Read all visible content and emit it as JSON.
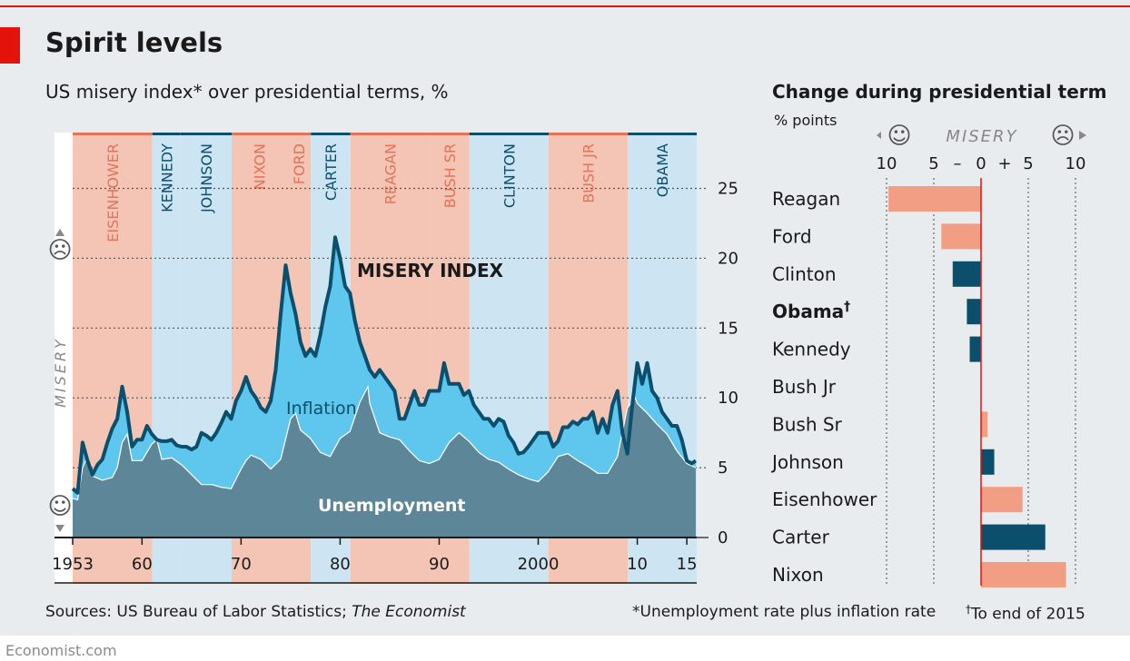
{
  "header": {
    "title": "Spirit levels",
    "left_subtitle": "US misery index* over presidential terms, %",
    "right_subtitle": "Change during presidential term",
    "right_unit": "% points"
  },
  "footer": {
    "sources_prefix": "Sources: US Bureau of Labor Statistics; ",
    "sources_italic": "The Economist",
    "note": "*Unemployment rate plus inflation rate",
    "dagger_note": "To end of 2015",
    "dagger": "†",
    "brand": "Economist.com"
  },
  "colors": {
    "background": "#e8ecee",
    "republican": "#f4c4b4",
    "democrat": "#cde5f3",
    "republican_text": "#e3735a",
    "democrat_text": "#0b4f6c",
    "unemployment_fill": "#5d8799",
    "inflation_fill": "#5fc6ed",
    "misery_line": "#0b4f6c",
    "bar_republican": "#f29e85",
    "bar_democrat": "#0b4f6c",
    "zero_line": "#e3120b"
  },
  "chart_data": [
    {
      "type": "area",
      "title": "US misery index* over presidential terms, %",
      "ylim": [
        0,
        29
      ],
      "xlim": [
        1953,
        2016
      ],
      "yticks": [
        0,
        5,
        10,
        15,
        20,
        25
      ],
      "xticks": [
        1953,
        1960,
        1970,
        1980,
        1990,
        2000,
        2010,
        2015
      ],
      "xtick_labels": [
        "1953",
        "60",
        "70",
        "80",
        "90",
        "2000",
        "10",
        "15"
      ],
      "y_axis_side": "right",
      "side_label": "MISERY",
      "terms": [
        {
          "name": "EISENHOWER",
          "start": 1953.0,
          "end": 1961.05,
          "party": "R"
        },
        {
          "name": "KENNEDY",
          "start": 1961.05,
          "end": 1963.9,
          "party": "D"
        },
        {
          "name": "JOHNSON",
          "start": 1963.9,
          "end": 1969.05,
          "party": "D"
        },
        {
          "name": "NIXON",
          "start": 1969.05,
          "end": 1974.6,
          "party": "R"
        },
        {
          "name": "FORD",
          "start": 1974.6,
          "end": 1977.05,
          "party": "R"
        },
        {
          "name": "CARTER",
          "start": 1977.05,
          "end": 1981.05,
          "party": "D"
        },
        {
          "name": "REAGAN",
          "start": 1981.05,
          "end": 1989.05,
          "party": "R"
        },
        {
          "name": "BUSH SR",
          "start": 1989.05,
          "end": 1993.05,
          "party": "R"
        },
        {
          "name": "CLINTON",
          "start": 1993.05,
          "end": 2001.05,
          "party": "D"
        },
        {
          "name": "BUSH JR",
          "start": 2001.05,
          "end": 2009.05,
          "party": "R"
        },
        {
          "name": "OBAMA",
          "start": 2009.05,
          "end": 2016.0,
          "party": "D"
        }
      ],
      "series_labels": {
        "misery": "MISERY INDEX",
        "inflation": "Inflation",
        "unemployment": "Unemployment"
      },
      "series": [
        {
          "name": "Unemployment",
          "x": [
            1953,
            1953.5,
            1954,
            1954.5,
            1955,
            1956,
            1957,
            1957.5,
            1958,
            1958.5,
            1959,
            1960,
            1961,
            1961.5,
            1962,
            1963,
            1964,
            1965,
            1966,
            1967,
            1968,
            1969,
            1970,
            1970.5,
            1971,
            1972,
            1973,
            1974,
            1975,
            1975.5,
            1976,
            1977,
            1978,
            1979,
            1980,
            1981,
            1982,
            1982.8,
            1983,
            1984,
            1985,
            1986,
            1987,
            1988,
            1989,
            1990,
            1991,
            1992,
            1993,
            1994,
            1995,
            1996,
            1997,
            1998,
            1999,
            2000,
            2001,
            2002,
            2003,
            2004,
            2005,
            2006,
            2007,
            2008,
            2009,
            2009.8,
            2010,
            2011,
            2012,
            2013,
            2014,
            2015,
            2015.9
          ],
          "values": [
            2.8,
            2.7,
            5.0,
            5.8,
            4.4,
            4.1,
            4.3,
            5.0,
            6.8,
            7.4,
            5.5,
            5.5,
            6.7,
            7.0,
            5.6,
            5.7,
            5.2,
            4.5,
            3.8,
            3.8,
            3.6,
            3.5,
            4.9,
            5.5,
            5.9,
            5.6,
            4.9,
            5.6,
            8.5,
            8.9,
            7.7,
            7.1,
            6.1,
            5.8,
            7.1,
            7.6,
            9.7,
            10.8,
            9.6,
            7.5,
            7.2,
            7.0,
            6.2,
            5.5,
            5.3,
            5.6,
            6.8,
            7.5,
            6.9,
            6.1,
            5.6,
            5.4,
            4.9,
            4.5,
            4.2,
            4.0,
            4.7,
            5.8,
            6.0,
            5.5,
            5.1,
            4.6,
            4.6,
            5.8,
            9.3,
            10.0,
            9.6,
            8.9,
            8.1,
            7.4,
            6.2,
            5.3,
            5.0
          ]
        },
        {
          "name": "Misery index",
          "x": [
            1953,
            1953.5,
            1954,
            1954.5,
            1955,
            1955.5,
            1956,
            1956.5,
            1957,
            1957.5,
            1958,
            1958.5,
            1959,
            1959.5,
            1960,
            1960.5,
            1961,
            1961.5,
            1962,
            1962.5,
            1963,
            1963.5,
            1964,
            1964.5,
            1965,
            1965.5,
            1966,
            1966.5,
            1967,
            1967.5,
            1968,
            1968.5,
            1969,
            1969.5,
            1970,
            1970.5,
            1971,
            1971.5,
            1972,
            1972.5,
            1973,
            1973.5,
            1974,
            1974.5,
            1975,
            1975.5,
            1976,
            1976.5,
            1977,
            1977.5,
            1978,
            1978.5,
            1979,
            1979.5,
            1980,
            1980.5,
            1981,
            1981.5,
            1982,
            1982.5,
            1983,
            1983.5,
            1984,
            1984.5,
            1985,
            1985.5,
            1986,
            1986.5,
            1987,
            1987.5,
            1988,
            1988.5,
            1989,
            1989.5,
            1990,
            1990.5,
            1991,
            1991.5,
            1992,
            1992.5,
            1993,
            1993.5,
            1994,
            1994.5,
            1995,
            1995.5,
            1996,
            1996.5,
            1997,
            1997.5,
            1998,
            1998.5,
            1999,
            1999.5,
            2000,
            2000.5,
            2001,
            2001.5,
            2002,
            2002.5,
            2003,
            2003.5,
            2004,
            2004.5,
            2005,
            2005.5,
            2006,
            2006.5,
            2007,
            2007.5,
            2008,
            2008.5,
            2009,
            2009.5,
            2010,
            2010.5,
            2011,
            2011.5,
            2012,
            2012.5,
            2013,
            2013.5,
            2014,
            2014.5,
            2015,
            2015.5,
            2015.9
          ],
          "values": [
            3.5,
            3.2,
            6.8,
            5.5,
            4.5,
            5.2,
            5.6,
            6.8,
            7.8,
            8.5,
            10.8,
            9.0,
            6.5,
            7.0,
            7.0,
            8.0,
            7.4,
            7.0,
            6.9,
            6.9,
            7.0,
            6.6,
            6.5,
            6.5,
            6.3,
            6.5,
            7.5,
            7.3,
            7.0,
            7.5,
            8.2,
            9.0,
            8.5,
            9.8,
            10.5,
            11.5,
            10.5,
            10.0,
            9.3,
            9.0,
            9.8,
            12.0,
            16.0,
            19.5,
            17.5,
            16.0,
            14.0,
            13.0,
            13.5,
            13.0,
            14.5,
            16.5,
            18.0,
            21.5,
            20.0,
            18.0,
            17.5,
            15.5,
            14.0,
            13.0,
            12.0,
            11.5,
            12.0,
            11.5,
            11.0,
            10.5,
            8.5,
            8.5,
            9.5,
            10.5,
            9.5,
            9.5,
            10.5,
            10.5,
            10.5,
            12.5,
            11.0,
            11.0,
            11.0,
            10.2,
            10.5,
            9.5,
            9.0,
            8.5,
            8.5,
            8.0,
            8.5,
            8.3,
            7.3,
            6.8,
            6.0,
            6.1,
            6.5,
            7.0,
            7.5,
            7.5,
            7.5,
            6.5,
            6.9,
            7.9,
            7.9,
            8.3,
            8.1,
            8.5,
            8.5,
            9.0,
            7.5,
            8.5,
            7.5,
            9.5,
            10.5,
            7.5,
            6.0,
            9.5,
            12.5,
            11.0,
            12.5,
            10.5,
            10.0,
            9.0,
            8.5,
            8.0,
            8.0,
            7.0,
            5.5,
            5.3,
            5.5
          ]
        }
      ],
      "marker_happy": "☺",
      "marker_sad": "☹"
    },
    {
      "type": "bar",
      "title": "Change during presidential term",
      "unit": "% points",
      "axis_label": "MISERY",
      "xlim": [
        -10,
        10
      ],
      "xticks": [
        -10,
        -5,
        0,
        5,
        10
      ],
      "xtick_labels": [
        "10",
        "5",
        "0",
        "5",
        "10"
      ],
      "sign_minus": "–",
      "sign_plus": "+",
      "categories": [
        "Reagan",
        "Ford",
        "Clinton",
        "Obama",
        "Kennedy",
        "Bush Jr",
        "Bush Sr",
        "Johnson",
        "Eisenhower",
        "Carter",
        "Nixon"
      ],
      "values": [
        -9.8,
        -4.2,
        -3.0,
        -1.5,
        -1.2,
        0.0,
        0.7,
        1.4,
        4.4,
        6.8,
        9.0
      ],
      "parties": [
        "R",
        "R",
        "D",
        "D",
        "D",
        "R",
        "R",
        "D",
        "R",
        "D",
        "R"
      ],
      "highlight": "Obama",
      "marker_happy": "☺",
      "marker_sad": "☹"
    }
  ]
}
